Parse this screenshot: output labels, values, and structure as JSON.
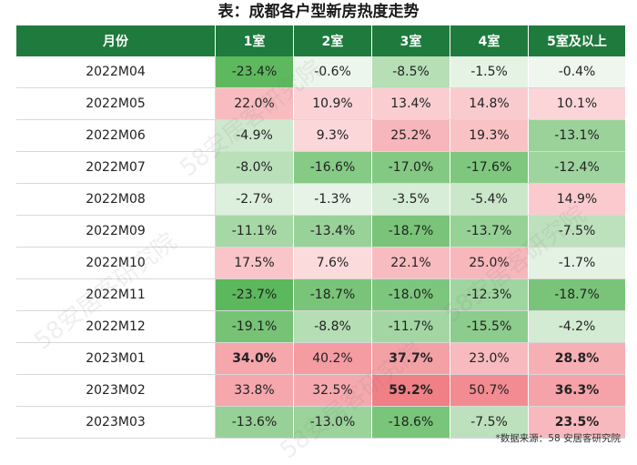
{
  "title": "表：成都各户型新房热度走势",
  "source": "*数据来源：58 安居客研究院",
  "watermark": "58安居客研究院",
  "colors": {
    "header_bg": "#1f7a3d",
    "positive": "#f07f86",
    "negative": "#5cb85c"
  },
  "chart_data": {
    "type": "table",
    "title": "表：成都各户型新房热度走势",
    "columns": [
      "月份",
      "1室",
      "2室",
      "3室",
      "4室",
      "5室及以上"
    ],
    "rows": [
      {
        "month": "2022M04",
        "values": [
          -23.4,
          -0.6,
          -8.5,
          -1.5,
          -0.4
        ],
        "bold": []
      },
      {
        "month": "2022M05",
        "values": [
          22.0,
          10.9,
          13.4,
          14.8,
          10.1
        ],
        "bold": []
      },
      {
        "month": "2022M06",
        "values": [
          -4.9,
          9.3,
          25.2,
          19.3,
          -13.1
        ],
        "bold": []
      },
      {
        "month": "2022M07",
        "values": [
          -8.0,
          -16.6,
          -17.0,
          -17.6,
          -12.4
        ],
        "bold": []
      },
      {
        "month": "2022M08",
        "values": [
          -2.7,
          -1.3,
          -3.5,
          -5.4,
          14.9
        ],
        "bold": []
      },
      {
        "month": "2022M09",
        "values": [
          -11.1,
          -13.4,
          -18.7,
          -13.7,
          -7.5
        ],
        "bold": []
      },
      {
        "month": "2022M10",
        "values": [
          17.5,
          7.6,
          22.1,
          25.0,
          -1.7
        ],
        "bold": []
      },
      {
        "month": "2022M11",
        "values": [
          -23.7,
          -18.7,
          -18.0,
          -12.3,
          -18.7
        ],
        "bold": []
      },
      {
        "month": "2022M12",
        "values": [
          -19.1,
          -8.8,
          -11.7,
          -15.5,
          -4.2
        ],
        "bold": []
      },
      {
        "month": "2023M01",
        "values": [
          34.0,
          40.2,
          37.7,
          23.0,
          28.8
        ],
        "bold": [
          0,
          2,
          4
        ]
      },
      {
        "month": "2023M02",
        "values": [
          33.8,
          32.5,
          59.2,
          50.7,
          36.3
        ],
        "bold": [
          2,
          4
        ]
      },
      {
        "month": "2023M03",
        "values": [
          -13.6,
          -13.0,
          -18.6,
          -7.5,
          23.5
        ],
        "bold": [
          4
        ]
      }
    ]
  }
}
